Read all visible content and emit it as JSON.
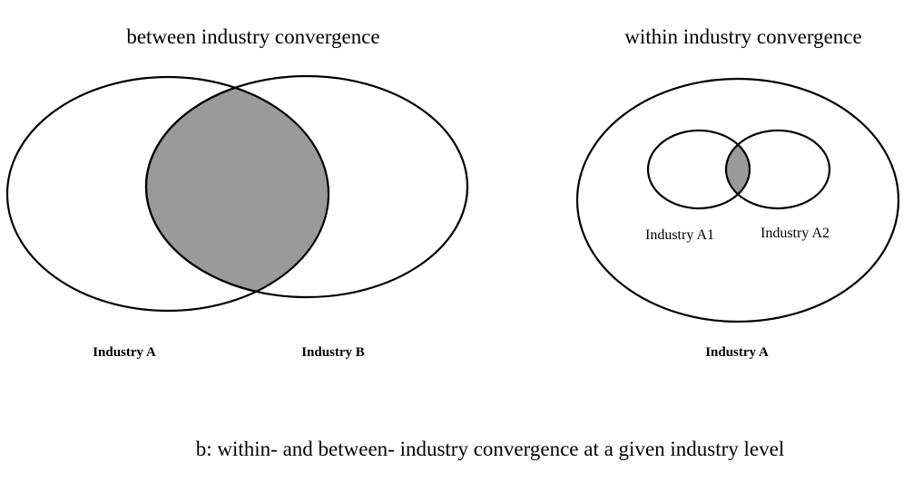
{
  "diagrams": {
    "between": {
      "title": "between industry convergence",
      "label_a": "Industry A",
      "label_b": "Industry B"
    },
    "within": {
      "title": "within industry convergence",
      "label_outer": "Industry A",
      "label_a1": "Industry A1",
      "label_a2": "Industry A2"
    }
  },
  "caption": "b: within- and between- industry convergence at a given industry level",
  "colors": {
    "line": "#000000",
    "overlap_fill": "#9a9a9a",
    "background": "#ffffff"
  }
}
